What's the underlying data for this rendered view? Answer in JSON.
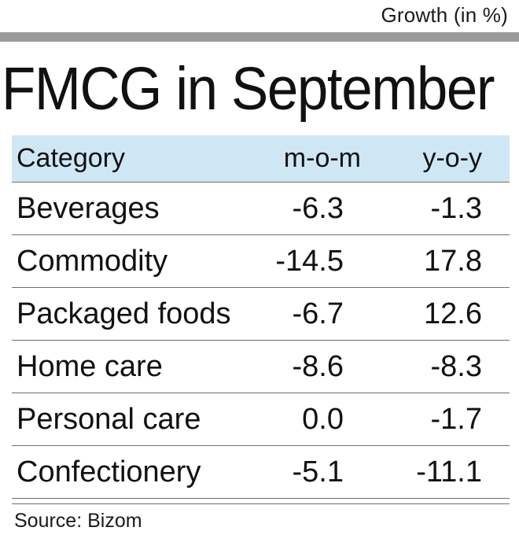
{
  "unit_label": "Growth (in %)",
  "title": "FMCG in September",
  "table": {
    "headers": [
      "Category",
      "m-o-m",
      "y-o-y"
    ],
    "rows": [
      {
        "category": "Beverages",
        "mom": "-6.3",
        "yoy": "-1.3"
      },
      {
        "category": "Commodity",
        "mom": "-14.5",
        "yoy": "17.8"
      },
      {
        "category": "Packaged foods",
        "mom": "-6.7",
        "yoy": "12.6"
      },
      {
        "category": "Home care",
        "mom": "-8.6",
        "yoy": "-8.3"
      },
      {
        "category": "Personal care",
        "mom": "0.0",
        "yoy": "-1.7"
      },
      {
        "category": "Confectionery",
        "mom": "-5.1",
        "yoy": "-11.1"
      }
    ]
  },
  "source": "Source: Bizom",
  "colors": {
    "header_background": "#cfe7f5",
    "top_rule": "#9a9a9a",
    "row_divider": "#6f6f6f"
  }
}
